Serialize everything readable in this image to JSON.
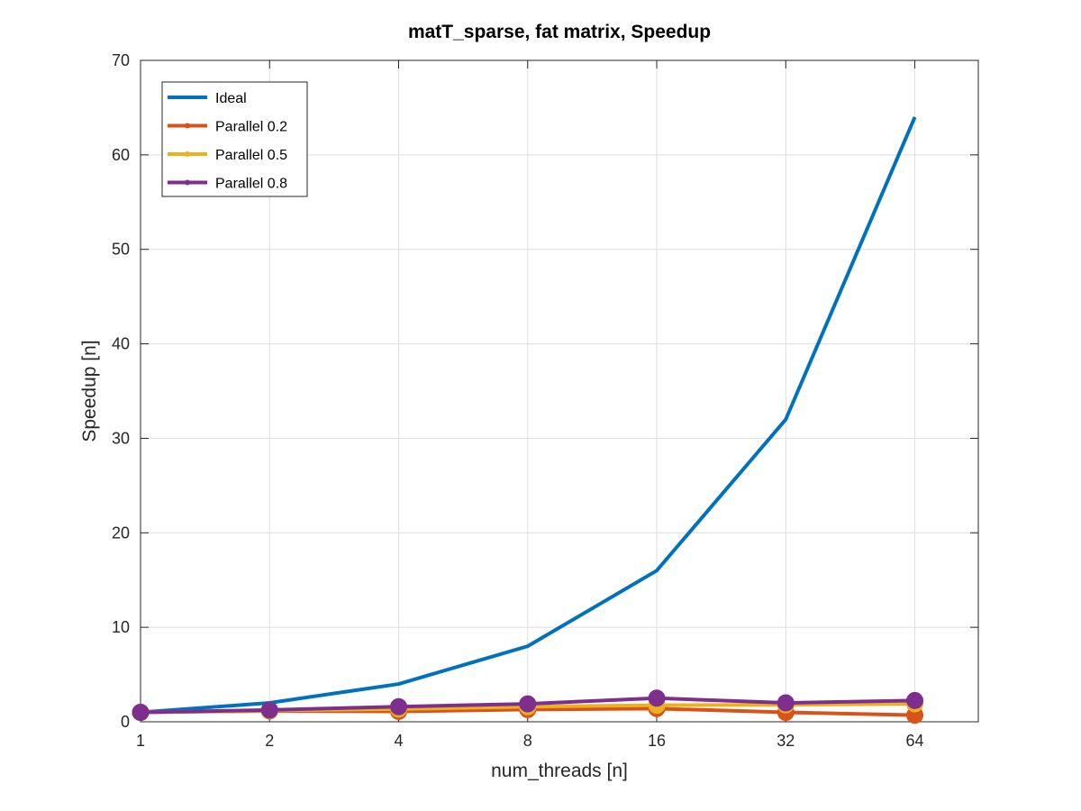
{
  "chart_data": {
    "type": "line",
    "title": "matT_sparse, fat matrix, Speedup",
    "xlabel": "num_threads [n]",
    "ylabel": "Speedup [n]",
    "x_categories": [
      "1",
      "2",
      "4",
      "8",
      "16",
      "32",
      "64"
    ],
    "x_scale": "log2",
    "xlim": [
      1,
      90
    ],
    "ylim": [
      0,
      70
    ],
    "yticks": [
      "0",
      "10",
      "20",
      "30",
      "40",
      "50",
      "60",
      "70"
    ],
    "grid": true,
    "legend_position": "top-left",
    "series": [
      {
        "name": "Ideal",
        "color": "#0072BD",
        "marker": "none",
        "values": [
          1,
          2,
          4,
          8,
          16,
          32,
          64
        ]
      },
      {
        "name": "Parallel 0.2",
        "color": "#D95319",
        "marker": "circle",
        "values": [
          1.0,
          1.15,
          1.1,
          1.3,
          1.4,
          1.0,
          0.7
        ]
      },
      {
        "name": "Parallel 0.5",
        "color": "#EDB120",
        "marker": "circle",
        "values": [
          1.0,
          1.2,
          1.35,
          1.6,
          1.75,
          1.8,
          1.9
        ]
      },
      {
        "name": "Parallel 0.8",
        "color": "#7E2F8E",
        "marker": "circle",
        "values": [
          1.0,
          1.25,
          1.6,
          1.9,
          2.5,
          2.0,
          2.25
        ]
      }
    ]
  }
}
